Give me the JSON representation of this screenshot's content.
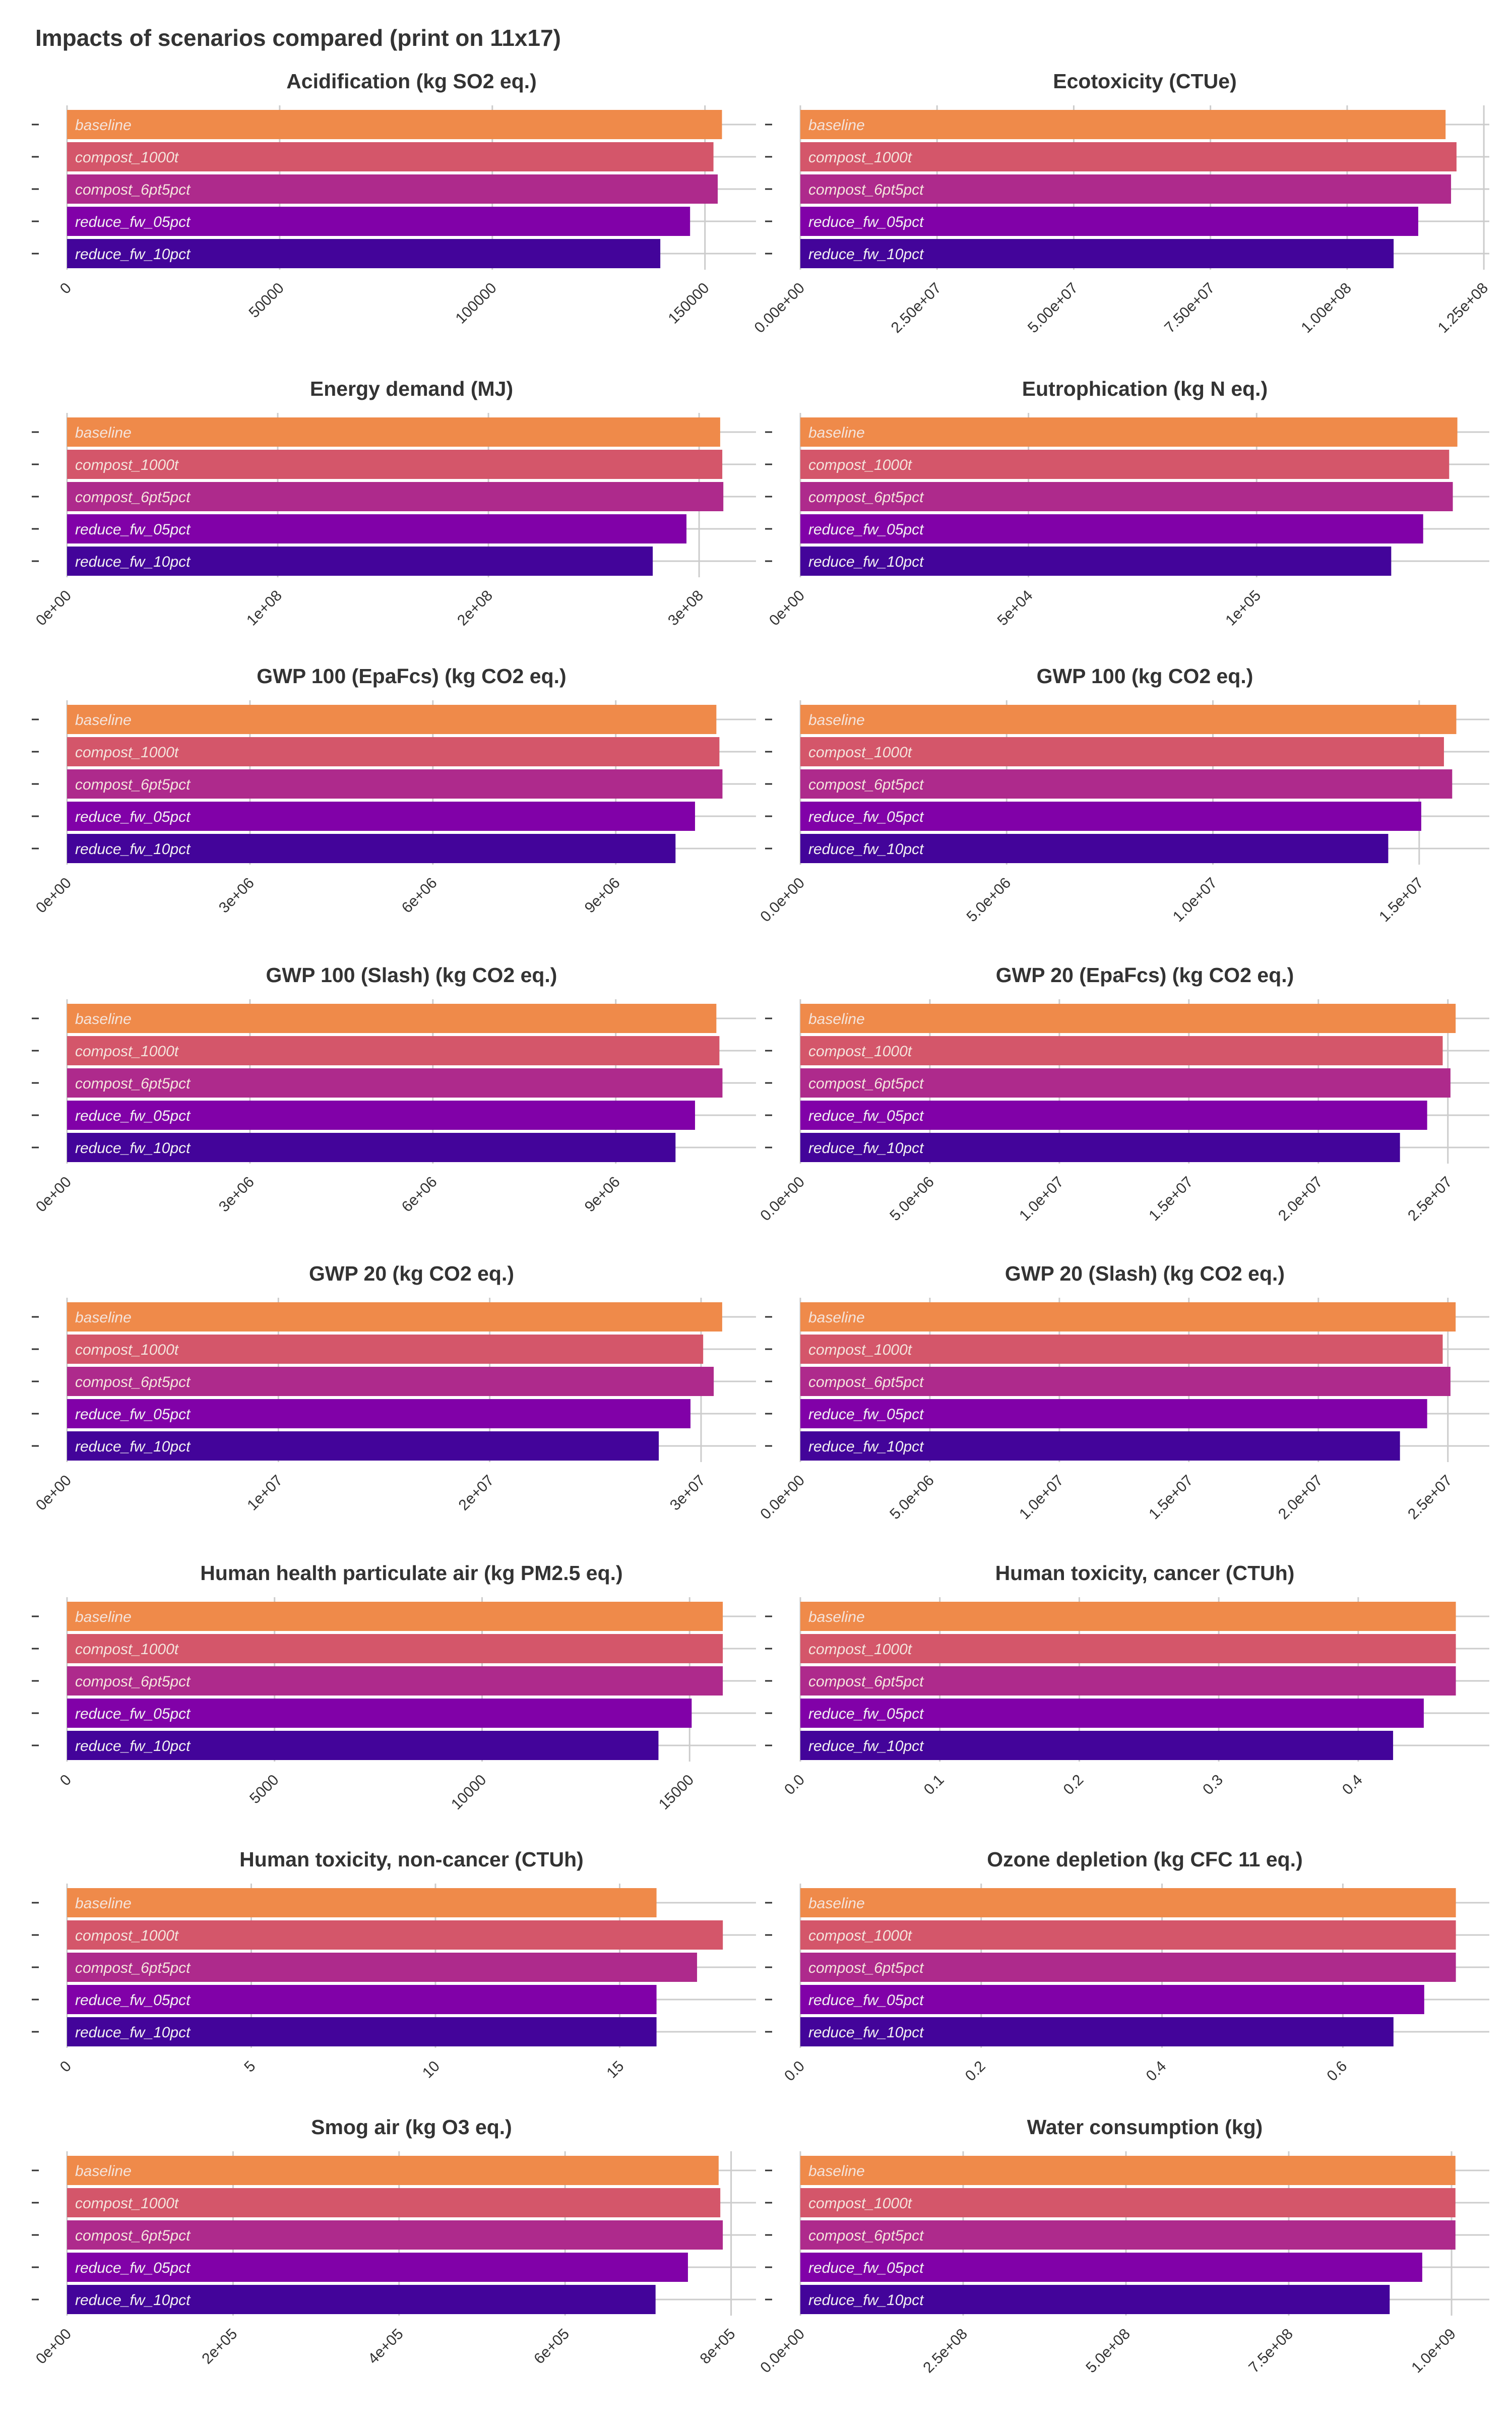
{
  "page": {
    "title": "Impacts of scenarios compared (print on 11x17)"
  },
  "colors": {
    "baseline": "#ef8a4a",
    "compost_1000t": "#d4566a",
    "compost_6pt5pct": "#ae2a8c",
    "reduce_fw_05pct": "#8101a8",
    "reduce_fw_10pct": "#43049a",
    "gridline": "#cccccc",
    "text": "#333333"
  },
  "chart_data": [
    {
      "type": "bar",
      "orientation": "horizontal",
      "title": "Acidification (kg SO2 eq.)",
      "categories": [
        "baseline",
        "compost_1000t",
        "compost_6pt5pct",
        "reduce_fw_05pct",
        "reduce_fw_10pct"
      ],
      "values": [
        154000,
        152000,
        153000,
        146500,
        139500
      ],
      "xlim": [
        0,
        162000
      ],
      "ticks": [
        0,
        50000,
        100000,
        150000
      ],
      "tick_labels": [
        "0",
        "50000",
        "100000",
        "150000"
      ]
    },
    {
      "type": "bar",
      "orientation": "horizontal",
      "title": "Ecotoxicity (CTUe)",
      "categories": [
        "baseline",
        "compost_1000t",
        "compost_6pt5pct",
        "reduce_fw_05pct",
        "reduce_fw_10pct"
      ],
      "values": [
        118000000,
        120000000,
        119000000,
        113000000,
        108500000
      ],
      "xlim": [
        0,
        126000000
      ],
      "ticks": [
        0,
        25000000,
        50000000,
        75000000,
        100000000,
        125000000
      ],
      "tick_labels": [
        "0.00e+00",
        "2.50e+07",
        "5.00e+07",
        "7.50e+07",
        "1.00e+08",
        "1.25e+08"
      ]
    },
    {
      "type": "bar",
      "orientation": "horizontal",
      "title": "Energy demand (MJ)",
      "categories": [
        "baseline",
        "compost_1000t",
        "compost_6pt5pct",
        "reduce_fw_05pct",
        "reduce_fw_10pct"
      ],
      "values": [
        310000000,
        311000000,
        311500000,
        294000000,
        278000000
      ],
      "xlim": [
        0,
        327000000
      ],
      "ticks": [
        0,
        100000000,
        200000000,
        300000000
      ],
      "tick_labels": [
        "0e+00",
        "1e+08",
        "2e+08",
        "3e+08"
      ]
    },
    {
      "type": "bar",
      "orientation": "horizontal",
      "title": "Eutrophication (kg N eq.)",
      "categories": [
        "baseline",
        "compost_1000t",
        "compost_6pt5pct",
        "reduce_fw_05pct",
        "reduce_fw_10pct"
      ],
      "values": [
        144000,
        142200,
        143000,
        136500,
        129500
      ],
      "xlim": [
        0,
        151000
      ],
      "ticks": [
        0,
        50000,
        100000
      ],
      "tick_labels": [
        "0e+00",
        "5e+04",
        "1e+05"
      ]
    },
    {
      "type": "bar",
      "orientation": "horizontal",
      "title": "GWP 100 (EpaFcs) (kg CO2 eq.)",
      "categories": [
        "baseline",
        "compost_1000t",
        "compost_6pt5pct",
        "reduce_fw_05pct",
        "reduce_fw_10pct"
      ],
      "values": [
        10650000,
        10700000,
        10750000,
        10300000,
        9980000
      ],
      "xlim": [
        0,
        11300000
      ],
      "ticks": [
        0,
        3000000,
        6000000,
        9000000
      ],
      "tick_labels": [
        "0e+00",
        "3e+06",
        "6e+06",
        "9e+06"
      ]
    },
    {
      "type": "bar",
      "orientation": "horizontal",
      "title": "GWP 100 (kg CO2 eq.)",
      "categories": [
        "baseline",
        "compost_1000t",
        "compost_6pt5pct",
        "reduce_fw_05pct",
        "reduce_fw_10pct"
      ],
      "values": [
        15900000,
        15600000,
        15800000,
        15050000,
        14250000
      ],
      "xlim": [
        0,
        16700000
      ],
      "ticks": [
        0,
        5000000,
        10000000,
        15000000
      ],
      "tick_labels": [
        "0.0e+00",
        "5.0e+06",
        "1.0e+07",
        "1.5e+07"
      ]
    },
    {
      "type": "bar",
      "orientation": "horizontal",
      "title": "GWP 100 (Slash) (kg CO2 eq.)",
      "categories": [
        "baseline",
        "compost_1000t",
        "compost_6pt5pct",
        "reduce_fw_05pct",
        "reduce_fw_10pct"
      ],
      "values": [
        10650000,
        10700000,
        10750000,
        10300000,
        9980000
      ],
      "xlim": [
        0,
        11300000
      ],
      "ticks": [
        0,
        3000000,
        6000000,
        9000000
      ],
      "tick_labels": [
        "0e+00",
        "3e+06",
        "6e+06",
        "9e+06"
      ]
    },
    {
      "type": "bar",
      "orientation": "horizontal",
      "title": "GWP 20 (EpaFcs) (kg CO2 eq.)",
      "categories": [
        "baseline",
        "compost_1000t",
        "compost_6pt5pct",
        "reduce_fw_05pct",
        "reduce_fw_10pct"
      ],
      "values": [
        25300000,
        24800000,
        25100000,
        24200000,
        23150000
      ],
      "xlim": [
        0,
        26600000
      ],
      "ticks": [
        0,
        5000000,
        10000000,
        15000000,
        20000000,
        25000000
      ],
      "tick_labels": [
        "0.0e+00",
        "5.0e+06",
        "1.0e+07",
        "1.5e+07",
        "2.0e+07",
        "2.5e+07"
      ]
    },
    {
      "type": "bar",
      "orientation": "horizontal",
      "title": "GWP 20 (kg CO2 eq.)",
      "categories": [
        "baseline",
        "compost_1000t",
        "compost_6pt5pct",
        "reduce_fw_05pct",
        "reduce_fw_10pct"
      ],
      "values": [
        31000000,
        30100000,
        30600000,
        29500000,
        28000000
      ],
      "xlim": [
        0,
        32600000
      ],
      "ticks": [
        0,
        10000000,
        20000000,
        30000000
      ],
      "tick_labels": [
        "0e+00",
        "1e+07",
        "2e+07",
        "3e+07"
      ]
    },
    {
      "type": "bar",
      "orientation": "horizontal",
      "title": "GWP 20 (Slash) (kg CO2 eq.)",
      "categories": [
        "baseline",
        "compost_1000t",
        "compost_6pt5pct",
        "reduce_fw_05pct",
        "reduce_fw_10pct"
      ],
      "values": [
        25300000,
        24800000,
        25100000,
        24200000,
        23150000
      ],
      "xlim": [
        0,
        26600000
      ],
      "ticks": [
        0,
        5000000,
        10000000,
        15000000,
        20000000,
        25000000
      ],
      "tick_labels": [
        "0.0e+00",
        "5.0e+06",
        "1.0e+07",
        "1.5e+07",
        "2.0e+07",
        "2.5e+07"
      ]
    },
    {
      "type": "bar",
      "orientation": "horizontal",
      "title": "Human health particulate air (kg PM2.5 eq.)",
      "categories": [
        "baseline",
        "compost_1000t",
        "compost_6pt5pct",
        "reduce_fw_05pct",
        "reduce_fw_10pct"
      ],
      "values": [
        15800,
        15800,
        15800,
        15050,
        14250
      ],
      "xlim": [
        0,
        16600
      ],
      "ticks": [
        0,
        5000,
        10000,
        15000
      ],
      "tick_labels": [
        "0",
        "5000",
        "10000",
        "15000"
      ]
    },
    {
      "type": "bar",
      "orientation": "horizontal",
      "title": "Human toxicity, cancer (CTUh)",
      "categories": [
        "baseline",
        "compost_1000t",
        "compost_6pt5pct",
        "reduce_fw_05pct",
        "reduce_fw_10pct"
      ],
      "values": [
        0.47,
        0.47,
        0.47,
        0.447,
        0.425
      ],
      "xlim": [
        0,
        0.494
      ],
      "ticks": [
        0,
        0.1,
        0.2,
        0.3,
        0.4
      ],
      "tick_labels": [
        "0.0",
        "0.1",
        "0.2",
        "0.3",
        "0.4"
      ]
    },
    {
      "type": "bar",
      "orientation": "horizontal",
      "title": "Human toxicity, non-cancer (CTUh)",
      "categories": [
        "baseline",
        "compost_1000t",
        "compost_6pt5pct",
        "reduce_fw_05pct",
        "reduce_fw_10pct"
      ],
      "values": [
        16,
        17.8,
        17.1,
        16,
        16
      ],
      "xlim": [
        0,
        18.7
      ],
      "ticks": [
        0,
        5,
        10,
        15
      ],
      "tick_labels": [
        "0",
        "5",
        "10",
        "15"
      ]
    },
    {
      "type": "bar",
      "orientation": "horizontal",
      "title": "Ozone depletion (kg CFC 11 eq.)",
      "categories": [
        "baseline",
        "compost_1000t",
        "compost_6pt5pct",
        "reduce_fw_05pct",
        "reduce_fw_10pct"
      ],
      "values": [
        0.725,
        0.725,
        0.725,
        0.69,
        0.656
      ],
      "xlim": [
        0,
        0.762
      ],
      "ticks": [
        0,
        0.2,
        0.4,
        0.6
      ],
      "tick_labels": [
        "0.0",
        "0.2",
        "0.4",
        "0.6"
      ]
    },
    {
      "type": "bar",
      "orientation": "horizontal",
      "title": "Smog air (kg O3 eq.)",
      "categories": [
        "baseline",
        "compost_1000t",
        "compost_6pt5pct",
        "reduce_fw_05pct",
        "reduce_fw_10pct"
      ],
      "values": [
        785000,
        787000,
        790000,
        748000,
        709000
      ],
      "xlim": [
        0,
        830000
      ],
      "ticks": [
        0,
        200000,
        400000,
        600000,
        800000
      ],
      "tick_labels": [
        "0e+00",
        "2e+05",
        "4e+05",
        "6e+05",
        "8e+05"
      ]
    },
    {
      "type": "bar",
      "orientation": "horizontal",
      "title": "Water consumption (kg)",
      "categories": [
        "baseline",
        "compost_1000t",
        "compost_6pt5pct",
        "reduce_fw_05pct",
        "reduce_fw_10pct"
      ],
      "values": [
        1006000000,
        1006000000,
        1006000000,
        955000000,
        905000000
      ],
      "xlim": [
        0,
        1058000000
      ],
      "ticks": [
        0,
        250000000,
        500000000,
        750000000,
        1000000000
      ],
      "tick_labels": [
        "0.0e+00",
        "2.5e+08",
        "5.0e+08",
        "7.5e+08",
        "1.0e+09"
      ]
    }
  ]
}
